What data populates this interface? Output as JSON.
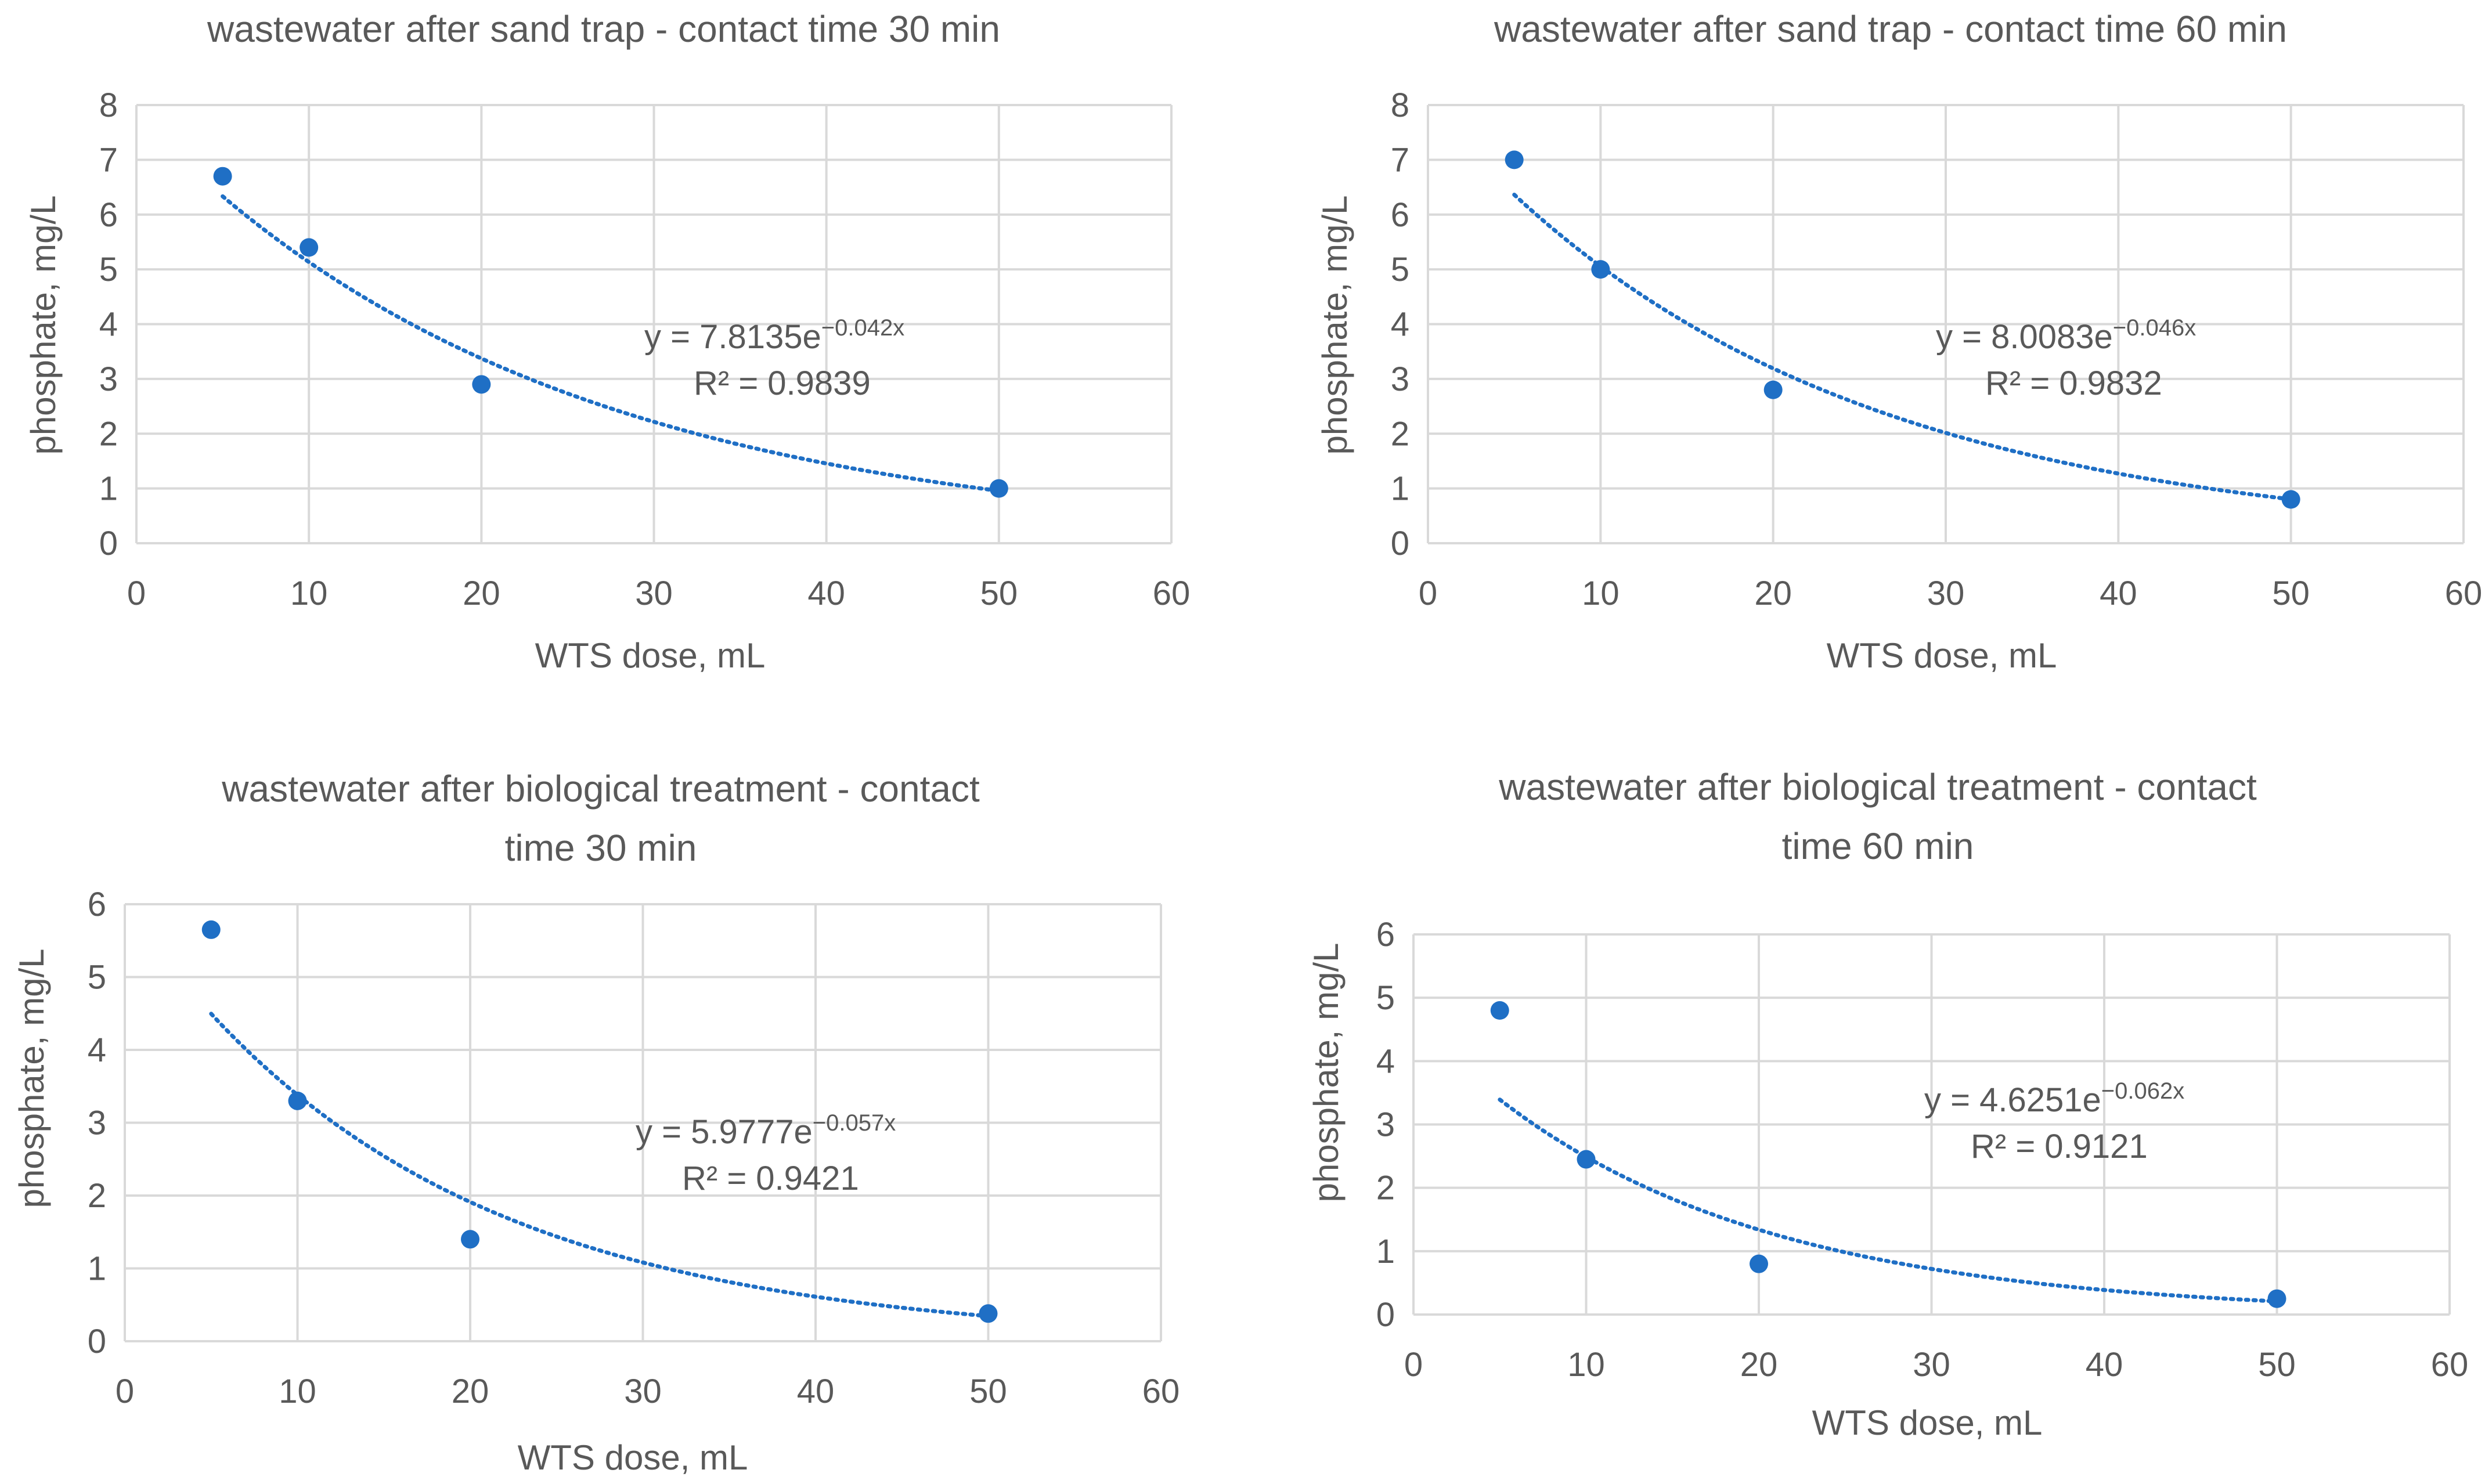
{
  "chart_data": [
    {
      "type": "scatter",
      "title_lines": [
        "wastewater after sand trap - contact time 30 min"
      ],
      "xlabel": "WTS dose, mL",
      "ylabel": "phosphate, mg/L",
      "xlim": [
        0,
        60
      ],
      "ylim": [
        0,
        8
      ],
      "xticks": [
        "0",
        "10",
        "20",
        "30",
        "40",
        "50",
        "60"
      ],
      "yticks": [
        "0",
        "1",
        "2",
        "3",
        "4",
        "5",
        "6",
        "7",
        "8"
      ],
      "series": [
        {
          "name": "phosphate",
          "x": [
            5,
            10,
            20,
            50
          ],
          "y": [
            6.7,
            5.4,
            2.9,
            1.0
          ]
        }
      ],
      "trendline": {
        "type": "exponential",
        "a": 7.8135,
        "b": -0.042,
        "x_from": 5,
        "x_to": 50,
        "equation_main": "y = 7.8135e",
        "equation_exp": "−0.042x",
        "r2": "R² = 0.9839"
      }
    },
    {
      "type": "scatter",
      "title_lines": [
        "wastewater after sand trap - contact time 60 min"
      ],
      "xlabel": "WTS dose, mL",
      "ylabel": "phosphate, mg/L",
      "xlim": [
        0,
        60
      ],
      "ylim": [
        0,
        8
      ],
      "xticks": [
        "0",
        "10",
        "20",
        "30",
        "40",
        "50",
        "60"
      ],
      "yticks": [
        "0",
        "1",
        "2",
        "3",
        "4",
        "5",
        "6",
        "7",
        "8"
      ],
      "series": [
        {
          "name": "phosphate",
          "x": [
            5,
            10,
            20,
            50
          ],
          "y": [
            7.0,
            5.0,
            2.8,
            0.8
          ]
        }
      ],
      "trendline": {
        "type": "exponential",
        "a": 8.0083,
        "b": -0.046,
        "x_from": 5,
        "x_to": 50,
        "equation_main": "y = 8.0083e",
        "equation_exp": "−0.046x",
        "r2": "R² = 0.9832"
      }
    },
    {
      "type": "scatter",
      "title_lines": [
        "wastewater after biological treatment - contact",
        "time 30 min"
      ],
      "xlabel": "WTS dose, mL",
      "ylabel": "phosphate, mg/L",
      "xlim": [
        0,
        60
      ],
      "ylim": [
        0,
        6
      ],
      "xticks": [
        "0",
        "10",
        "20",
        "30",
        "40",
        "50",
        "60"
      ],
      "yticks": [
        "0",
        "1",
        "2",
        "3",
        "4",
        "5",
        "6"
      ],
      "series": [
        {
          "name": "phosphate",
          "x": [
            5,
            10,
            20,
            50
          ],
          "y": [
            5.65,
            3.3,
            1.4,
            0.38
          ]
        }
      ],
      "trendline": {
        "type": "exponential",
        "a": 5.9777,
        "b": -0.057,
        "x_from": 5,
        "x_to": 50,
        "equation_main": "y = 5.9777e",
        "equation_exp": "−0.057x",
        "r2": "R² = 0.9421"
      }
    },
    {
      "type": "scatter",
      "title_lines": [
        "wastewater after biological treatment - contact",
        "time 60 min"
      ],
      "xlabel": "WTS dose, mL",
      "ylabel": "phosphate, mg/L",
      "xlim": [
        0,
        60
      ],
      "ylim": [
        0,
        6
      ],
      "xticks": [
        "0",
        "10",
        "20",
        "30",
        "40",
        "50",
        "60"
      ],
      "yticks": [
        "0",
        "1",
        "2",
        "3",
        "4",
        "5",
        "6"
      ],
      "series": [
        {
          "name": "phosphate",
          "x": [
            5,
            10,
            20,
            50
          ],
          "y": [
            4.8,
            2.45,
            0.8,
            0.25
          ]
        }
      ],
      "trendline": {
        "type": "exponential",
        "a": 4.6251,
        "b": -0.062,
        "x_from": 5,
        "x_to": 50,
        "equation_main": "y = 4.6251e",
        "equation_exp": "−0.062x",
        "r2": "R² = 0.9121"
      }
    }
  ],
  "colors": {
    "marker": "#1f6fc5",
    "grid": "#d9d9d9",
    "text": "#595959"
  }
}
